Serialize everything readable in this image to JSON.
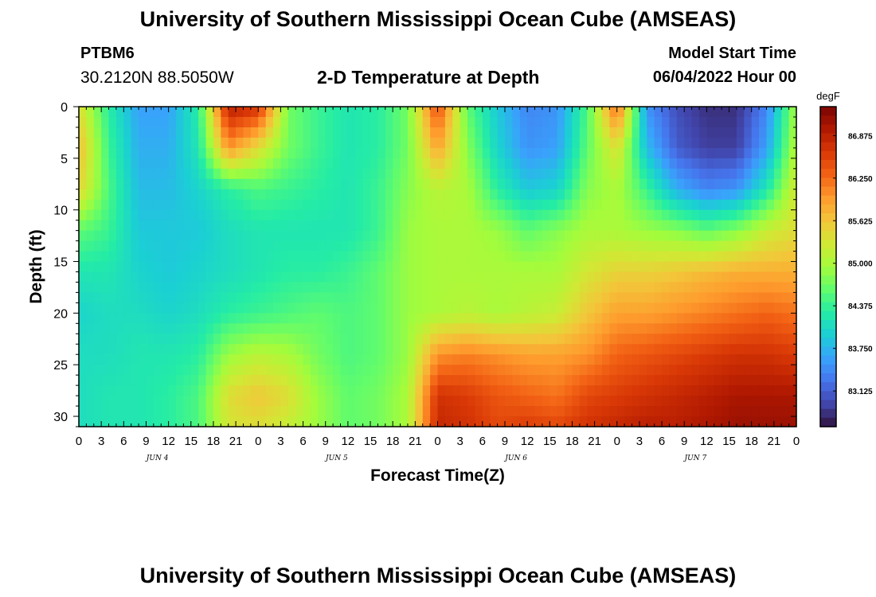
{
  "header": {
    "title": "University of Southern Mississippi Ocean Cube (AMSEAS)",
    "station": "PTBM6",
    "coordinates": "30.2120N  88.5050W",
    "subtitle": "2-D Temperature at Depth",
    "model_start_label": "Model Start Time",
    "model_start_value": "06/04/2022 Hour 00"
  },
  "footer": {
    "title": "University of Southern Mississippi Ocean Cube (AMSEAS)"
  },
  "chart_data": {
    "type": "heatmap",
    "title": "2-D Temperature at Depth",
    "xlabel": "Forecast Time(Z)",
    "ylabel": "Depth (ft)",
    "x_tick_labels": [
      "0",
      "3",
      "6",
      "9",
      "12",
      "15",
      "18",
      "21",
      "0",
      "3",
      "6",
      "9",
      "12",
      "15",
      "18",
      "21",
      "0",
      "3",
      "6",
      "9",
      "12",
      "15",
      "18",
      "21",
      "0",
      "3",
      "6",
      "9",
      "12",
      "15",
      "18",
      "21",
      "0"
    ],
    "date_labels": [
      "JUN 4",
      "JUN 5",
      "JUN 6",
      "JUN 7"
    ],
    "x_range_hours": [
      0,
      96
    ],
    "y_tick_labels": [
      "0",
      "5",
      "10",
      "15",
      "20",
      "25",
      "30"
    ],
    "y_range_ft": [
      0,
      31
    ],
    "y_inverted": true,
    "colorbar": {
      "units": "degF",
      "min": 82.6,
      "max": 87.3,
      "tick_labels": [
        "86.875",
        "86.250",
        "85.625",
        "85.000",
        "84.375",
        "83.750",
        "83.125"
      ],
      "colors": [
        "#30123b",
        "#4145ab",
        "#4675ed",
        "#39a2fc",
        "#1bcfd4",
        "#24eca6",
        "#61fc6c",
        "#a4fc3b",
        "#d1e834",
        "#f3c63a",
        "#fe9b2d",
        "#f36315",
        "#d93806",
        "#b11901",
        "#7a0403"
      ]
    },
    "time_hours": [
      0,
      4,
      8,
      12,
      16,
      20,
      24,
      28,
      32,
      36,
      40,
      44,
      48,
      52,
      56,
      60,
      64,
      68,
      72,
      76,
      80,
      84,
      88,
      92,
      96
    ],
    "depth_ft": [
      0,
      4,
      8,
      12,
      16,
      20,
      24,
      28,
      31
    ],
    "temperature_degF": [
      [
        85.4,
        84.3,
        83.6,
        83.6,
        84.3,
        86.9,
        86.7,
        84.7,
        84.4,
        84.2,
        84.3,
        84.7,
        86.5,
        84.6,
        83.9,
        83.4,
        83.5,
        84.5,
        86.3,
        83.5,
        83.0,
        82.8,
        82.8,
        83.4,
        85.0
      ],
      [
        85.7,
        84.4,
        83.7,
        83.7,
        84.2,
        86.0,
        85.4,
        84.7,
        84.4,
        84.2,
        84.3,
        84.7,
        85.9,
        84.8,
        84.0,
        83.5,
        83.6,
        84.6,
        85.4,
        83.8,
        83.1,
        82.9,
        82.9,
        83.6,
        85.1
      ],
      [
        85.5,
        84.5,
        83.8,
        83.8,
        84.0,
        84.3,
        84.5,
        84.4,
        84.3,
        84.2,
        84.4,
        84.8,
        85.1,
        85.0,
        84.3,
        83.9,
        84.0,
        84.8,
        85.0,
        84.4,
        83.7,
        83.4,
        83.5,
        84.2,
        85.3
      ],
      [
        84.6,
        84.4,
        83.9,
        83.9,
        83.9,
        84.1,
        84.2,
        84.2,
        84.2,
        84.2,
        84.4,
        84.9,
        85.0,
        85.0,
        84.9,
        84.6,
        84.8,
        85.0,
        85.0,
        84.9,
        84.8,
        84.6,
        84.8,
        85.2,
        85.4
      ],
      [
        84.2,
        84.2,
        84.0,
        83.9,
        84.0,
        84.1,
        84.2,
        84.3,
        84.3,
        84.4,
        84.6,
        84.9,
        85.0,
        85.0,
        85.0,
        85.0,
        85.0,
        85.3,
        85.5,
        85.5,
        85.6,
        85.7,
        85.8,
        85.8,
        85.8
      ],
      [
        84.0,
        84.1,
        84.1,
        84.0,
        84.1,
        84.3,
        84.4,
        84.5,
        84.6,
        84.5,
        84.6,
        84.9,
        85.0,
        85.1,
        85.0,
        85.1,
        85.2,
        85.6,
        85.9,
        85.9,
        86.0,
        86.1,
        86.2,
        86.3,
        86.2
      ],
      [
        84.1,
        84.1,
        84.2,
        84.2,
        84.3,
        84.9,
        85.1,
        85.0,
        84.7,
        84.5,
        84.6,
        84.9,
        86.0,
        86.1,
        86.0,
        85.9,
        85.9,
        86.0,
        86.3,
        86.4,
        86.5,
        86.6,
        86.7,
        86.7,
        86.6
      ],
      [
        84.1,
        84.2,
        84.2,
        84.3,
        84.5,
        85.4,
        85.6,
        85.4,
        84.9,
        84.6,
        84.7,
        85.0,
        86.7,
        86.6,
        86.4,
        86.3,
        86.2,
        86.5,
        86.6,
        86.7,
        86.8,
        86.9,
        87.0,
        87.0,
        87.0
      ],
      [
        84.1,
        84.2,
        84.2,
        84.3,
        84.5,
        85.3,
        85.4,
        85.2,
        84.9,
        84.6,
        84.7,
        85.0,
        86.8,
        86.7,
        86.5,
        86.6,
        86.5,
        86.7,
        86.8,
        86.9,
        86.9,
        87.0,
        87.1,
        87.1,
        87.1
      ]
    ]
  }
}
